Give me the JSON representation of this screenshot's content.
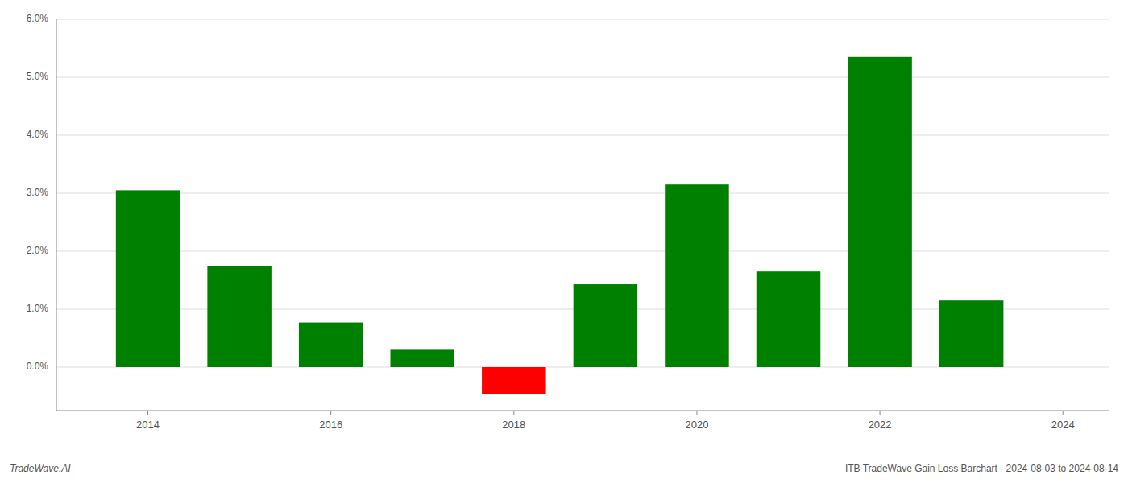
{
  "chart_data": {
    "type": "bar",
    "title": "ITB TradeWave Gain Loss Barchart - 2024-08-03 to 2024-08-14",
    "annotations": [
      "TradeWave.AI"
    ],
    "x": [
      2014,
      2015,
      2016,
      2017,
      2018,
      2019,
      2020,
      2021,
      2022,
      2023
    ],
    "values": [
      0.0305,
      0.0175,
      0.0077,
      0.003,
      -0.0047,
      0.0143,
      0.0315,
      0.0165,
      0.0535,
      0.0115
    ],
    "colors": [
      "#008000",
      "#008000",
      "#008000",
      "#008000",
      "#ff0000",
      "#008000",
      "#008000",
      "#008000",
      "#008000",
      "#008000"
    ],
    "xlim": [
      2013.0,
      2024.5
    ],
    "xticks": [
      2014,
      2016,
      2018,
      2020,
      2022,
      2024
    ],
    "ylim": [
      -0.0075,
      0.06
    ],
    "yticks": [
      {
        "value": 0,
        "label": "0.0%"
      },
      {
        "value": 0.01,
        "label": "1.0%"
      },
      {
        "value": 0.02,
        "label": "2.0%"
      },
      {
        "value": 0.03,
        "label": "3.0%"
      },
      {
        "value": 0.04,
        "label": "4.0%"
      },
      {
        "value": 0.05,
        "label": "5.0%"
      },
      {
        "value": 0.06,
        "label": "6.0%"
      }
    ],
    "grid": true
  }
}
